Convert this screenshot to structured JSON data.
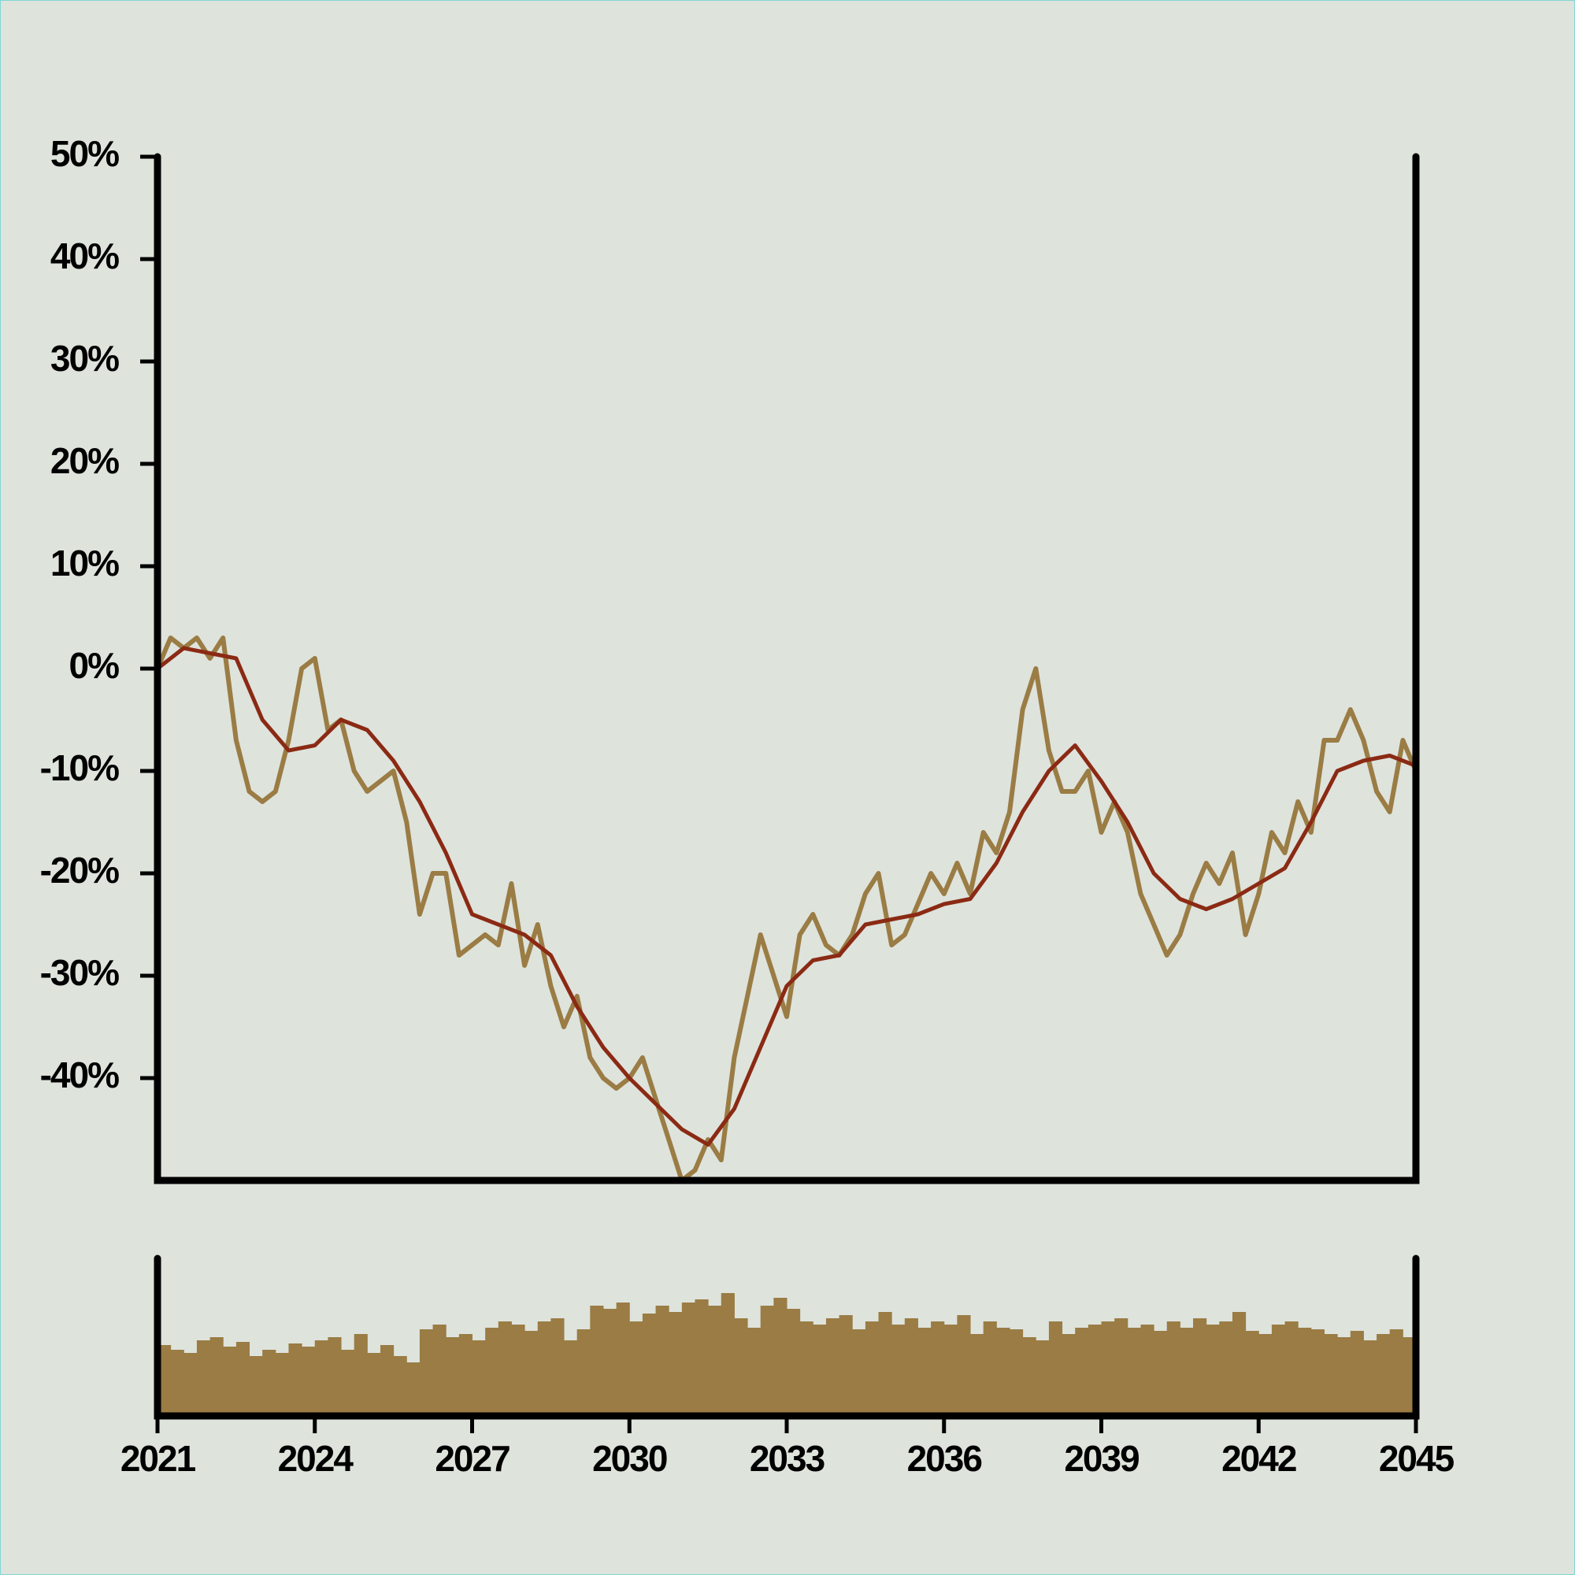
{
  "chart_data": [
    {
      "type": "line",
      "xlim": [
        2021,
        2045
      ],
      "ylim": [
        -50,
        50
      ],
      "yticks": [
        {
          "value": 50,
          "label": "50%"
        },
        {
          "value": 40,
          "label": "40%"
        },
        {
          "value": 30,
          "label": "30%"
        },
        {
          "value": 20,
          "label": "20%"
        },
        {
          "value": 10,
          "label": "10%"
        },
        {
          "value": 0,
          "label": "0%"
        },
        {
          "value": -10,
          "label": "-10%"
        },
        {
          "value": -20,
          "label": "-20%"
        },
        {
          "value": -30,
          "label": "-30%"
        },
        {
          "value": -40,
          "label": "-40%"
        }
      ],
      "series": [
        {
          "color": "#9a7c44",
          "x": [
            2021,
            2021.25,
            2021.5,
            2021.75,
            2022,
            2022.25,
            2022.5,
            2022.75,
            2023,
            2023.25,
            2023.5,
            2023.75,
            2024,
            2024.25,
            2024.5,
            2024.75,
            2025,
            2025.25,
            2025.5,
            2025.75,
            2026,
            2026.25,
            2026.5,
            2026.75,
            2027,
            2027.25,
            2027.5,
            2027.75,
            2028,
            2028.25,
            2028.5,
            2028.75,
            2029,
            2029.25,
            2029.5,
            2029.75,
            2030,
            2030.25,
            2030.5,
            2030.75,
            2031,
            2031.25,
            2031.5,
            2031.75,
            2032,
            2032.25,
            2032.5,
            2032.75,
            2033,
            2033.25,
            2033.5,
            2033.75,
            2034,
            2034.25,
            2034.5,
            2034.75,
            2035,
            2035.25,
            2035.5,
            2035.75,
            2036,
            2036.25,
            2036.5,
            2036.75,
            2037,
            2037.25,
            2037.5,
            2037.75,
            2038,
            2038.25,
            2038.5,
            2038.75,
            2039,
            2039.25,
            2039.5,
            2039.75,
            2040,
            2040.25,
            2040.5,
            2040.75,
            2041,
            2041.25,
            2041.5,
            2041.75,
            2042,
            2042.25,
            2042.5,
            2042.75,
            2043,
            2043.25,
            2043.5,
            2043.75,
            2044,
            2044.25,
            2044.5,
            2044.75,
            2045
          ],
          "values": [
            0,
            3,
            2,
            3,
            1,
            3,
            -7,
            -12,
            -13,
            -12,
            -7,
            0,
            1,
            -6,
            -5,
            -10,
            -12,
            -11,
            -10,
            -15,
            -24,
            -20,
            -20,
            -28,
            -27,
            -26,
            -27,
            -21,
            -29,
            -25,
            -31,
            -35,
            -32,
            -38,
            -40,
            -41,
            -40,
            -38,
            -42,
            -46,
            -50,
            -49,
            -46,
            -48,
            -38,
            -32,
            -26,
            -30,
            -34,
            -26,
            -24,
            -27,
            -28,
            -26,
            -22,
            -20,
            -27,
            -26,
            -23,
            -20,
            -22,
            -19,
            -22,
            -16,
            -18,
            -14,
            -4,
            0,
            -8,
            -12,
            -12,
            -10,
            -16,
            -13,
            -16,
            -22,
            -25,
            -28,
            -26,
            -22,
            -19,
            -21,
            -18,
            -26,
            -22,
            -16,
            -18,
            -13,
            -16,
            -7,
            -7,
            -4,
            -7,
            -12,
            -14,
            -7,
            -10
          ]
        },
        {
          "color": "#8b2a14",
          "x": [
            2021,
            2021.5,
            2022,
            2022.5,
            2023,
            2023.5,
            2024,
            2024.5,
            2025,
            2025.5,
            2026,
            2026.5,
            2027,
            2027.5,
            2028,
            2028.5,
            2029,
            2029.5,
            2030,
            2030.5,
            2031,
            2031.5,
            2032,
            2032.5,
            2033,
            2033.5,
            2034,
            2034.5,
            2035,
            2035.5,
            2036,
            2036.5,
            2037,
            2037.5,
            2038,
            2038.5,
            2039,
            2039.5,
            2040,
            2040.5,
            2041,
            2041.5,
            2042,
            2042.5,
            2043,
            2043.5,
            2044,
            2044.5,
            2045
          ],
          "values": [
            0,
            2,
            1.5,
            1,
            -5,
            -8,
            -7.5,
            -5,
            -6,
            -9,
            -13,
            -18,
            -24,
            -25,
            -26,
            -28,
            -33,
            -37,
            -40,
            -42.5,
            -45,
            -46.5,
            -43,
            -37,
            -31,
            -28.5,
            -28,
            -25,
            -24.5,
            -24,
            -23,
            -22.5,
            -19,
            -14,
            -10,
            -7.5,
            -11,
            -15,
            -20,
            -22.5,
            -23.5,
            -22.5,
            -21,
            -19.5,
            -15,
            -10,
            -9,
            -8.5,
            -9.5
          ]
        }
      ]
    },
    {
      "type": "bar",
      "color": "#9a7c44",
      "xlim": [
        2021,
        2045
      ],
      "ylim": [
        0,
        100
      ],
      "xticks": [
        2021,
        2024,
        2027,
        2030,
        2033,
        2036,
        2039,
        2042,
        2045
      ],
      "x": [
        2021,
        2021.25,
        2021.5,
        2021.75,
        2022,
        2022.25,
        2022.5,
        2022.75,
        2023,
        2023.25,
        2023.5,
        2023.75,
        2024,
        2024.25,
        2024.5,
        2024.75,
        2025,
        2025.25,
        2025.5,
        2025.75,
        2026,
        2026.25,
        2026.5,
        2026.75,
        2027,
        2027.25,
        2027.5,
        2027.75,
        2028,
        2028.25,
        2028.5,
        2028.75,
        2029,
        2029.25,
        2029.5,
        2029.75,
        2030,
        2030.25,
        2030.5,
        2030.75,
        2031,
        2031.25,
        2031.5,
        2031.75,
        2032,
        2032.25,
        2032.5,
        2032.75,
        2033,
        2033.25,
        2033.5,
        2033.75,
        2034,
        2034.25,
        2034.5,
        2034.75,
        2035,
        2035.25,
        2035.5,
        2035.75,
        2036,
        2036.25,
        2036.5,
        2036.75,
        2037,
        2037.25,
        2037.5,
        2037.75,
        2038,
        2038.25,
        2038.5,
        2038.75,
        2039,
        2039.25,
        2039.5,
        2039.75,
        2040,
        2040.25,
        2040.5,
        2040.75,
        2041,
        2041.25,
        2041.5,
        2041.75,
        2042,
        2042.25,
        2042.5,
        2042.75,
        2043,
        2043.25,
        2043.5,
        2043.75,
        2044,
        2044.25,
        2044.5,
        2044.75,
        2045
      ],
      "values": [
        45,
        42,
        40,
        48,
        50,
        44,
        47,
        38,
        42,
        40,
        46,
        44,
        48,
        50,
        42,
        52,
        40,
        45,
        38,
        34,
        55,
        58,
        50,
        52,
        48,
        56,
        60,
        58,
        54,
        60,
        62,
        48,
        55,
        70,
        68,
        72,
        60,
        65,
        70,
        66,
        72,
        74,
        70,
        78,
        62,
        56,
        70,
        75,
        68,
        60,
        58,
        62,
        64,
        55,
        60,
        66,
        58,
        62,
        56,
        60,
        58,
        64,
        52,
        60,
        56,
        55,
        50,
        48,
        60,
        52,
        56,
        58,
        60,
        62,
        56,
        58,
        54,
        60,
        56,
        62,
        58,
        60,
        66,
        54,
        52,
        58,
        60,
        56,
        55,
        52,
        50,
        54,
        48,
        52,
        55,
        50,
        48
      ]
    }
  ]
}
